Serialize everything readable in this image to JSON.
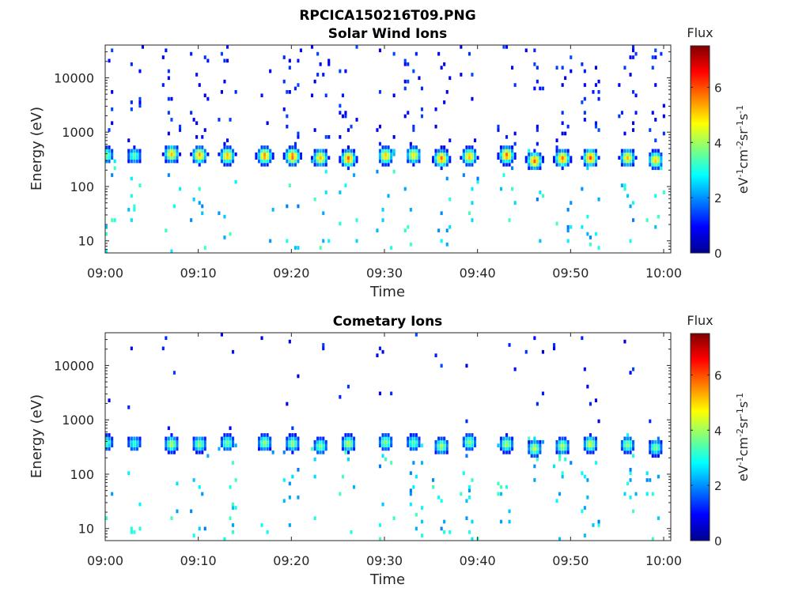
{
  "figure_title": "RPCICA150216T09.PNG",
  "chart_data": [
    {
      "type": "heatmap",
      "title": "Solar Wind Ions",
      "xlabel": "Time",
      "ylabel": "Energy (eV)",
      "x_ticks": [
        "09:00",
        "09:10",
        "09:20",
        "09:30",
        "09:40",
        "09:50",
        "10:00"
      ],
      "x_range": [
        "09:00",
        "10:00"
      ],
      "y_ticks": [
        10,
        100,
        1000,
        10000
      ],
      "y_tick_labels": [
        "10",
        "100",
        "1000",
        "10000"
      ],
      "y_scale": "log",
      "y_range": [
        6,
        40000
      ],
      "colorbar": {
        "label": "Flux",
        "unit": "eV-1cm-2sr-1s-1",
        "ticks": [
          0,
          2,
          4,
          6
        ],
        "range": [
          0,
          7.5
        ]
      },
      "scans": [
        {
          "t": "09:00",
          "peak_eV": 380,
          "max_flux": 3.8
        },
        {
          "t": "09:03",
          "peak_eV": 370,
          "max_flux": 3.5
        },
        {
          "t": "09:07",
          "peak_eV": 400,
          "max_flux": 5.2
        },
        {
          "t": "09:10",
          "peak_eV": 380,
          "max_flux": 5.4
        },
        {
          "t": "09:13",
          "peak_eV": 370,
          "max_flux": 5.3
        },
        {
          "t": "09:17",
          "peak_eV": 370,
          "max_flux": 5.6
        },
        {
          "t": "09:20",
          "peak_eV": 360,
          "max_flux": 5.9
        },
        {
          "t": "09:23",
          "peak_eV": 340,
          "max_flux": 5.2
        },
        {
          "t": "09:26",
          "peak_eV": 330,
          "max_flux": 5.9
        },
        {
          "t": "09:30",
          "peak_eV": 370,
          "max_flux": 5.2
        },
        {
          "t": "09:33",
          "peak_eV": 380,
          "max_flux": 4.9
        },
        {
          "t": "09:36",
          "peak_eV": 330,
          "max_flux": 5.8
        },
        {
          "t": "09:39",
          "peak_eV": 360,
          "max_flux": 5.3
        },
        {
          "t": "09:43",
          "peak_eV": 380,
          "max_flux": 5.8
        },
        {
          "t": "09:46",
          "peak_eV": 300,
          "max_flux": 5.9
        },
        {
          "t": "09:49",
          "peak_eV": 330,
          "max_flux": 5.8
        },
        {
          "t": "09:52",
          "peak_eV": 340,
          "max_flux": 6.0
        },
        {
          "t": "09:56",
          "peak_eV": 340,
          "max_flux": 5.2
        },
        {
          "t": "09:59",
          "peak_eV": 310,
          "max_flux": 5.2
        }
      ],
      "grid": false
    },
    {
      "type": "heatmap",
      "title": "Cometary Ions",
      "xlabel": "Time",
      "ylabel": "Energy (eV)",
      "x_ticks": [
        "09:00",
        "09:10",
        "09:20",
        "09:30",
        "09:40",
        "09:50",
        "10:00"
      ],
      "x_range": [
        "09:00",
        "10:00"
      ],
      "y_ticks": [
        10,
        100,
        1000,
        10000
      ],
      "y_tick_labels": [
        "10",
        "100",
        "1000",
        "10000"
      ],
      "y_scale": "log",
      "y_range": [
        6,
        40000
      ],
      "colorbar": {
        "label": "Flux",
        "unit": "eV-1cm-2sr-1s-1",
        "ticks": [
          0,
          2,
          4,
          6
        ],
        "range": [
          0,
          7.5
        ]
      },
      "scans": [
        {
          "t": "09:00",
          "peak_eV": 380,
          "max_flux": 3.4
        },
        {
          "t": "09:03",
          "peak_eV": 370,
          "max_flux": 3.2
        },
        {
          "t": "09:07",
          "peak_eV": 360,
          "max_flux": 4.2
        },
        {
          "t": "09:10",
          "peak_eV": 360,
          "max_flux": 3.9
        },
        {
          "t": "09:13",
          "peak_eV": 380,
          "max_flux": 3.7
        },
        {
          "t": "09:17",
          "peak_eV": 380,
          "max_flux": 4.0
        },
        {
          "t": "09:20",
          "peak_eV": 370,
          "max_flux": 4.0
        },
        {
          "t": "09:23",
          "peak_eV": 330,
          "max_flux": 3.8
        },
        {
          "t": "09:26",
          "peak_eV": 370,
          "max_flux": 4.2
        },
        {
          "t": "09:30",
          "peak_eV": 390,
          "max_flux": 3.9
        },
        {
          "t": "09:33",
          "peak_eV": 380,
          "max_flux": 3.6
        },
        {
          "t": "09:36",
          "peak_eV": 330,
          "max_flux": 4.1
        },
        {
          "t": "09:39",
          "peak_eV": 390,
          "max_flux": 3.9
        },
        {
          "t": "09:43",
          "peak_eV": 360,
          "max_flux": 4.1
        },
        {
          "t": "09:46",
          "peak_eV": 300,
          "max_flux": 4.3
        },
        {
          "t": "09:49",
          "peak_eV": 330,
          "max_flux": 4.2
        },
        {
          "t": "09:52",
          "peak_eV": 360,
          "max_flux": 4.4
        },
        {
          "t": "09:56",
          "peak_eV": 350,
          "max_flux": 3.9
        },
        {
          "t": "09:59",
          "peak_eV": 310,
          "max_flux": 3.8
        }
      ],
      "grid": false
    }
  ],
  "colormap": [
    "#00008f",
    "#0000ff",
    "#007fff",
    "#00ffff",
    "#7fff7f",
    "#ffff00",
    "#ff7f00",
    "#ff0000",
    "#7f0000"
  ]
}
